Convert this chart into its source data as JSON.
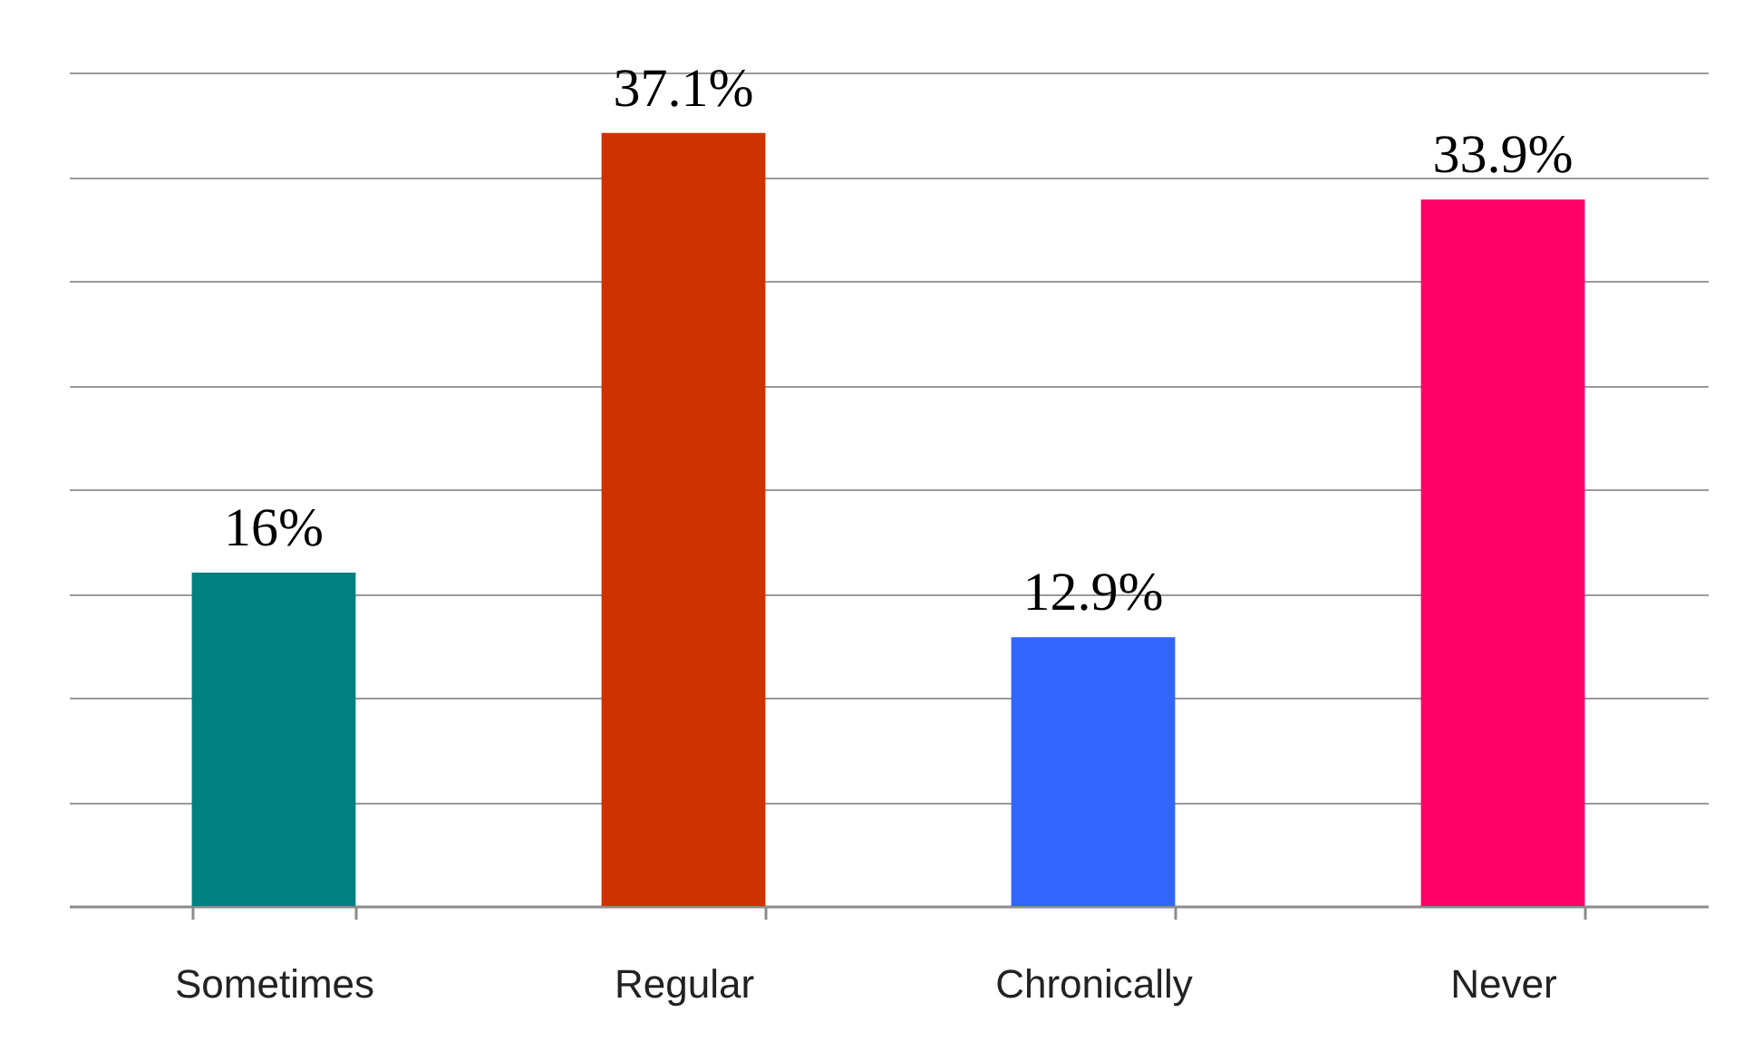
{
  "chart_data": {
    "type": "bar",
    "categories": [
      "Sometimes",
      "Regular",
      "Chronically",
      "Never"
    ],
    "values": [
      16,
      37.1,
      12.9,
      33.9
    ],
    "value_labels": [
      "16%",
      "37.1%",
      "12.9%",
      "33.9%"
    ],
    "colors": [
      "#008080",
      "#cc3300",
      "#3366ff",
      "#ff0066"
    ],
    "ylim": [
      0,
      40
    ],
    "yticks": [
      {
        "value": 0,
        "label": null
      },
      {
        "value": 5,
        "label": null
      },
      {
        "value": 10,
        "label": null
      },
      {
        "value": 15,
        "label": null
      },
      {
        "value": 20,
        "label": null
      },
      {
        "value": 25,
        "label": null
      },
      {
        "value": 30,
        "label": null
      },
      {
        "value": 35,
        "label": null
      },
      {
        "value": 40,
        "label": null
      }
    ],
    "grid": "y",
    "tick_labels": "x"
  }
}
